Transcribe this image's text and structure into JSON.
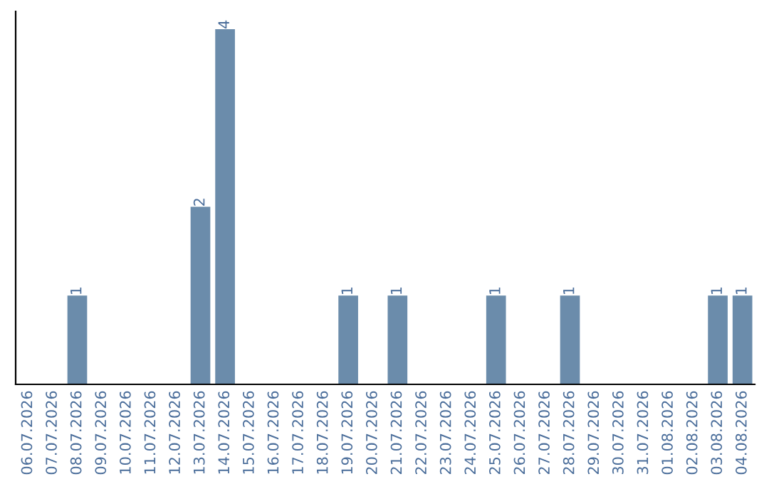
{
  "chart_data": {
    "type": "bar",
    "categories": [
      "06.07.2026",
      "07.07.2026",
      "08.07.2026",
      "09.07.2026",
      "10.07.2026",
      "11.07.2026",
      "12.07.2026",
      "13.07.2026",
      "14.07.2026",
      "15.07.2026",
      "16.07.2026",
      "17.07.2026",
      "18.07.2026",
      "19.07.2026",
      "20.07.2026",
      "21.07.2026",
      "22.07.2026",
      "23.07.2026",
      "24.07.2026",
      "25.07.2026",
      "26.07.2026",
      "27.07.2026",
      "28.07.2026",
      "29.07.2026",
      "30.07.2026",
      "31.07.2026",
      "01.08.2026",
      "02.08.2026",
      "03.08.2026",
      "04.08.2026"
    ],
    "values": [
      0,
      0,
      1,
      0,
      0,
      0,
      0,
      2,
      4,
      0,
      0,
      0,
      0,
      1,
      0,
      1,
      0,
      0,
      0,
      1,
      0,
      0,
      1,
      0,
      0,
      0,
      0,
      0,
      1,
      1
    ],
    "value_labels": [
      null,
      null,
      "1",
      null,
      null,
      null,
      null,
      "2",
      "4",
      null,
      null,
      null,
      null,
      "1",
      null,
      "1",
      null,
      null,
      null,
      "1",
      null,
      null,
      "1",
      null,
      null,
      null,
      null,
      null,
      "1",
      "1"
    ],
    "color": "#6b8cab",
    "ylim": [
      0,
      4.2
    ],
    "tick_labels": "x",
    "grid": false,
    "legend": false
  }
}
